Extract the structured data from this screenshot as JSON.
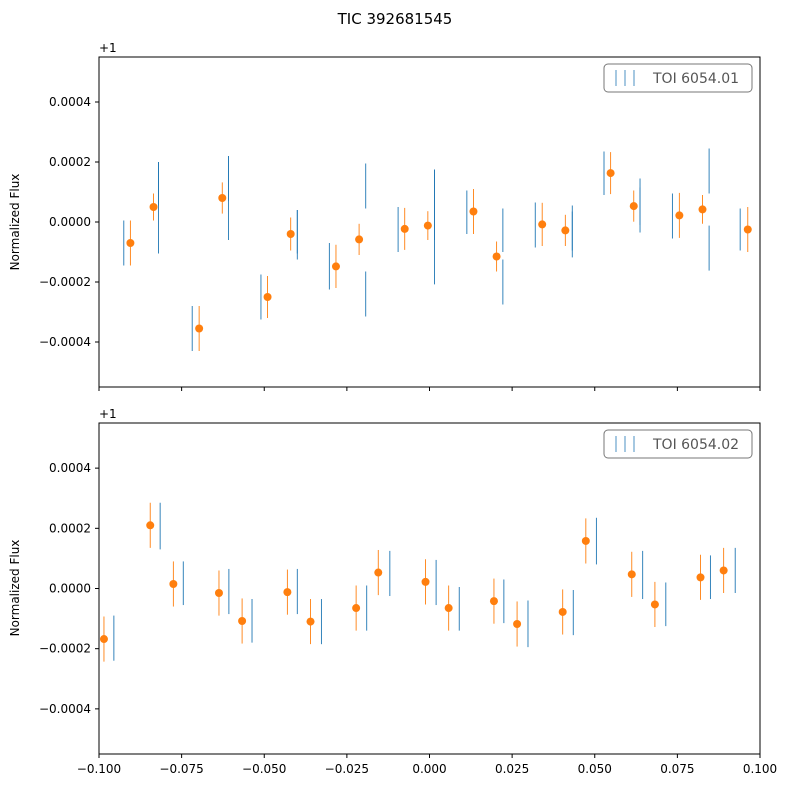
{
  "title": "TIC 392681545",
  "offset_label": "+1",
  "colors": {
    "binned": "#ff7f0e",
    "raw": "#1f77b4"
  },
  "chart_data": [
    {
      "type": "scatter",
      "legend": {
        "label": "TOI 6054.01",
        "placement": "top-right"
      },
      "xlabel": "",
      "ylabel": "Normalized Flux",
      "xlim": [
        -0.1,
        0.1
      ],
      "ylim": [
        -0.00055,
        0.00055
      ],
      "xticks": [
        -0.1,
        -0.075,
        -0.05,
        -0.025,
        0.0,
        0.025,
        0.05,
        0.075,
        0.1
      ],
      "yticks": [
        -0.0004,
        -0.0002,
        0.0,
        0.0002,
        0.0004
      ],
      "ytick_labels": [
        "−0.0004",
        "−0.0002",
        "0.0000",
        "0.0002",
        "0.0004"
      ],
      "series": [
        {
          "marker": "point",
          "x": [
            -0.0905,
            -0.0835,
            -0.0697,
            -0.0627,
            -0.049,
            -0.042,
            -0.0283,
            -0.0213,
            -0.0075,
            -0.0005,
            0.0133,
            0.0203,
            0.0341,
            0.0411,
            0.0548,
            0.0618,
            0.0756,
            0.0826,
            0.0963
          ],
          "y": [
            -7e-05,
            5e-05,
            -0.000355,
            8e-05,
            -0.00025,
            -4e-05,
            -0.000148,
            -5.8e-05,
            -2.3e-05,
            -1.2e-05,
            3.5e-05,
            -0.000115,
            -8e-06,
            -2.8e-05,
            0.000163,
            5.3e-05,
            2.2e-05,
            4.2e-05,
            -2.5e-05
          ],
          "err": [
            7.5e-05,
            4.5e-05,
            7.5e-05,
            5.2e-05,
            7e-05,
            5.5e-05,
            7.2e-05,
            5.2e-05,
            7e-05,
            4.8e-05,
            7.5e-05,
            5e-05,
            7.2e-05,
            5.2e-05,
            7e-05,
            5.2e-05,
            7.5e-05,
            4.8e-05,
            7.5e-05
          ]
        },
        {
          "marker": "errorbar-only",
          "x": [
            -0.0925,
            -0.082,
            -0.0718,
            -0.0608,
            -0.051,
            -0.04,
            -0.0303,
            -0.0193,
            -0.0095,
            0.0015,
            0.0113,
            0.0222,
            0.032,
            0.0432,
            0.0528,
            0.0637,
            0.0735,
            0.0846
          ],
          "low": [
            -0.000145,
            -0.000105,
            -0.00043,
            -6e-05,
            -0.000325,
            -0.000125,
            -0.000225,
            -0.000315,
            -0.0001,
            -0.000208,
            -4e-05,
            -0.000275,
            -8.5e-05,
            -0.000118,
            9e-05,
            -3.5e-05,
            -5.5e-05,
            -0.000162
          ],
          "high": [
            5e-06,
            0.0002,
            -0.00028,
            0.00022,
            -0.000175,
            4e-05,
            -7e-05,
            -0.000165,
            5e-05,
            0.000175,
            0.000105,
            -0.000125,
            6.5e-05,
            3.5e-05,
            0.000235,
            0.000115,
            9.5e-05,
            -1.2e-05
          ]
        },
        {
          "marker": "errorbar-only",
          "x": [
            -0.082,
            -0.0608,
            -0.04,
            -0.0193,
            0.0015,
            0.0222,
            0.0432,
            0.0637,
            0.0846,
            0.094
          ],
          "low": [
            5.5e-05,
            7e-05,
            -0.000105,
            4.5e-05,
            -6e-05,
            -0.0001,
            -9.5e-05,
            -1e-05,
            9.5e-05,
            -9.5e-05
          ],
          "high": [
            0.0002,
            0.00022,
            4e-05,
            0.000195,
            0.000175,
            4.5e-05,
            5.5e-05,
            0.000145,
            0.000245,
            4.5e-05
          ]
        }
      ]
    },
    {
      "type": "scatter",
      "legend": {
        "label": "TOI 6054.02",
        "placement": "top-right"
      },
      "xlabel": "",
      "ylabel": "Normalized Flux",
      "xlim": [
        -0.1,
        0.1
      ],
      "ylim": [
        -0.00055,
        0.00055
      ],
      "xticks": [
        -0.1,
        -0.075,
        -0.05,
        -0.025,
        0.0,
        0.025,
        0.05,
        0.075,
        0.1
      ],
      "xtick_labels": [
        "−0.100",
        "−0.075",
        "−0.050",
        "−0.025",
        "0.000",
        "0.025",
        "0.050",
        "0.075",
        "0.100"
      ],
      "yticks": [
        -0.0004,
        -0.0002,
        0.0,
        0.0002,
        0.0004
      ],
      "ytick_labels": [
        "−0.0004",
        "−0.0002",
        "0.0000",
        "0.0002",
        "0.0004"
      ],
      "series": [
        {
          "marker": "point",
          "x": [
            -0.0985,
            -0.0845,
            -0.0775,
            -0.0637,
            -0.0567,
            -0.043,
            -0.036,
            -0.0222,
            -0.0155,
            -0.0012,
            0.0058,
            0.0195,
            0.0265,
            0.0403,
            0.0473,
            0.0612,
            0.0682,
            0.082,
            0.089
          ],
          "y": [
            -0.000168,
            0.00021,
            1.5e-05,
            -1.5e-05,
            -0.000108,
            -1.2e-05,
            -0.00011,
            -6.5e-05,
            5.3e-05,
            2.2e-05,
            -6.5e-05,
            -4.2e-05,
            -0.000118,
            -7.8e-05,
            0.000158,
            4.7e-05,
            -5.3e-05,
            3.7e-05,
            6e-05
          ]
        },
        {
          "marker": "errorbar-only",
          "x": [
            -0.0955,
            -0.0815,
            -0.0745,
            -0.0607,
            -0.0537,
            -0.04,
            -0.0327,
            -0.019,
            -0.012,
            0.002,
            0.009,
            0.0225,
            0.0298,
            0.0435,
            0.0505,
            0.0645,
            0.0715,
            0.085,
            0.0925
          ],
          "low": [
            -0.00024,
            0.00013,
            -5.5e-05,
            -8.5e-05,
            -0.00018,
            -8.5e-05,
            -0.000185,
            -0.00014,
            -2.5e-05,
            -5.5e-05,
            -0.00014,
            -0.000115,
            -0.000195,
            -0.000155,
            8e-05,
            -3.5e-05,
            -0.000125,
            -3.5e-05,
            -1.5e-05
          ],
          "high": [
            -9e-05,
            0.000285,
            9e-05,
            6.5e-05,
            -3.5e-05,
            6.5e-05,
            -3.5e-05,
            1e-05,
            0.000125,
            9.5e-05,
            5e-06,
            3e-05,
            -4e-05,
            -5e-06,
            0.000235,
            0.000125,
            2e-05,
            0.00011,
            0.000135
          ]
        }
      ]
    }
  ]
}
